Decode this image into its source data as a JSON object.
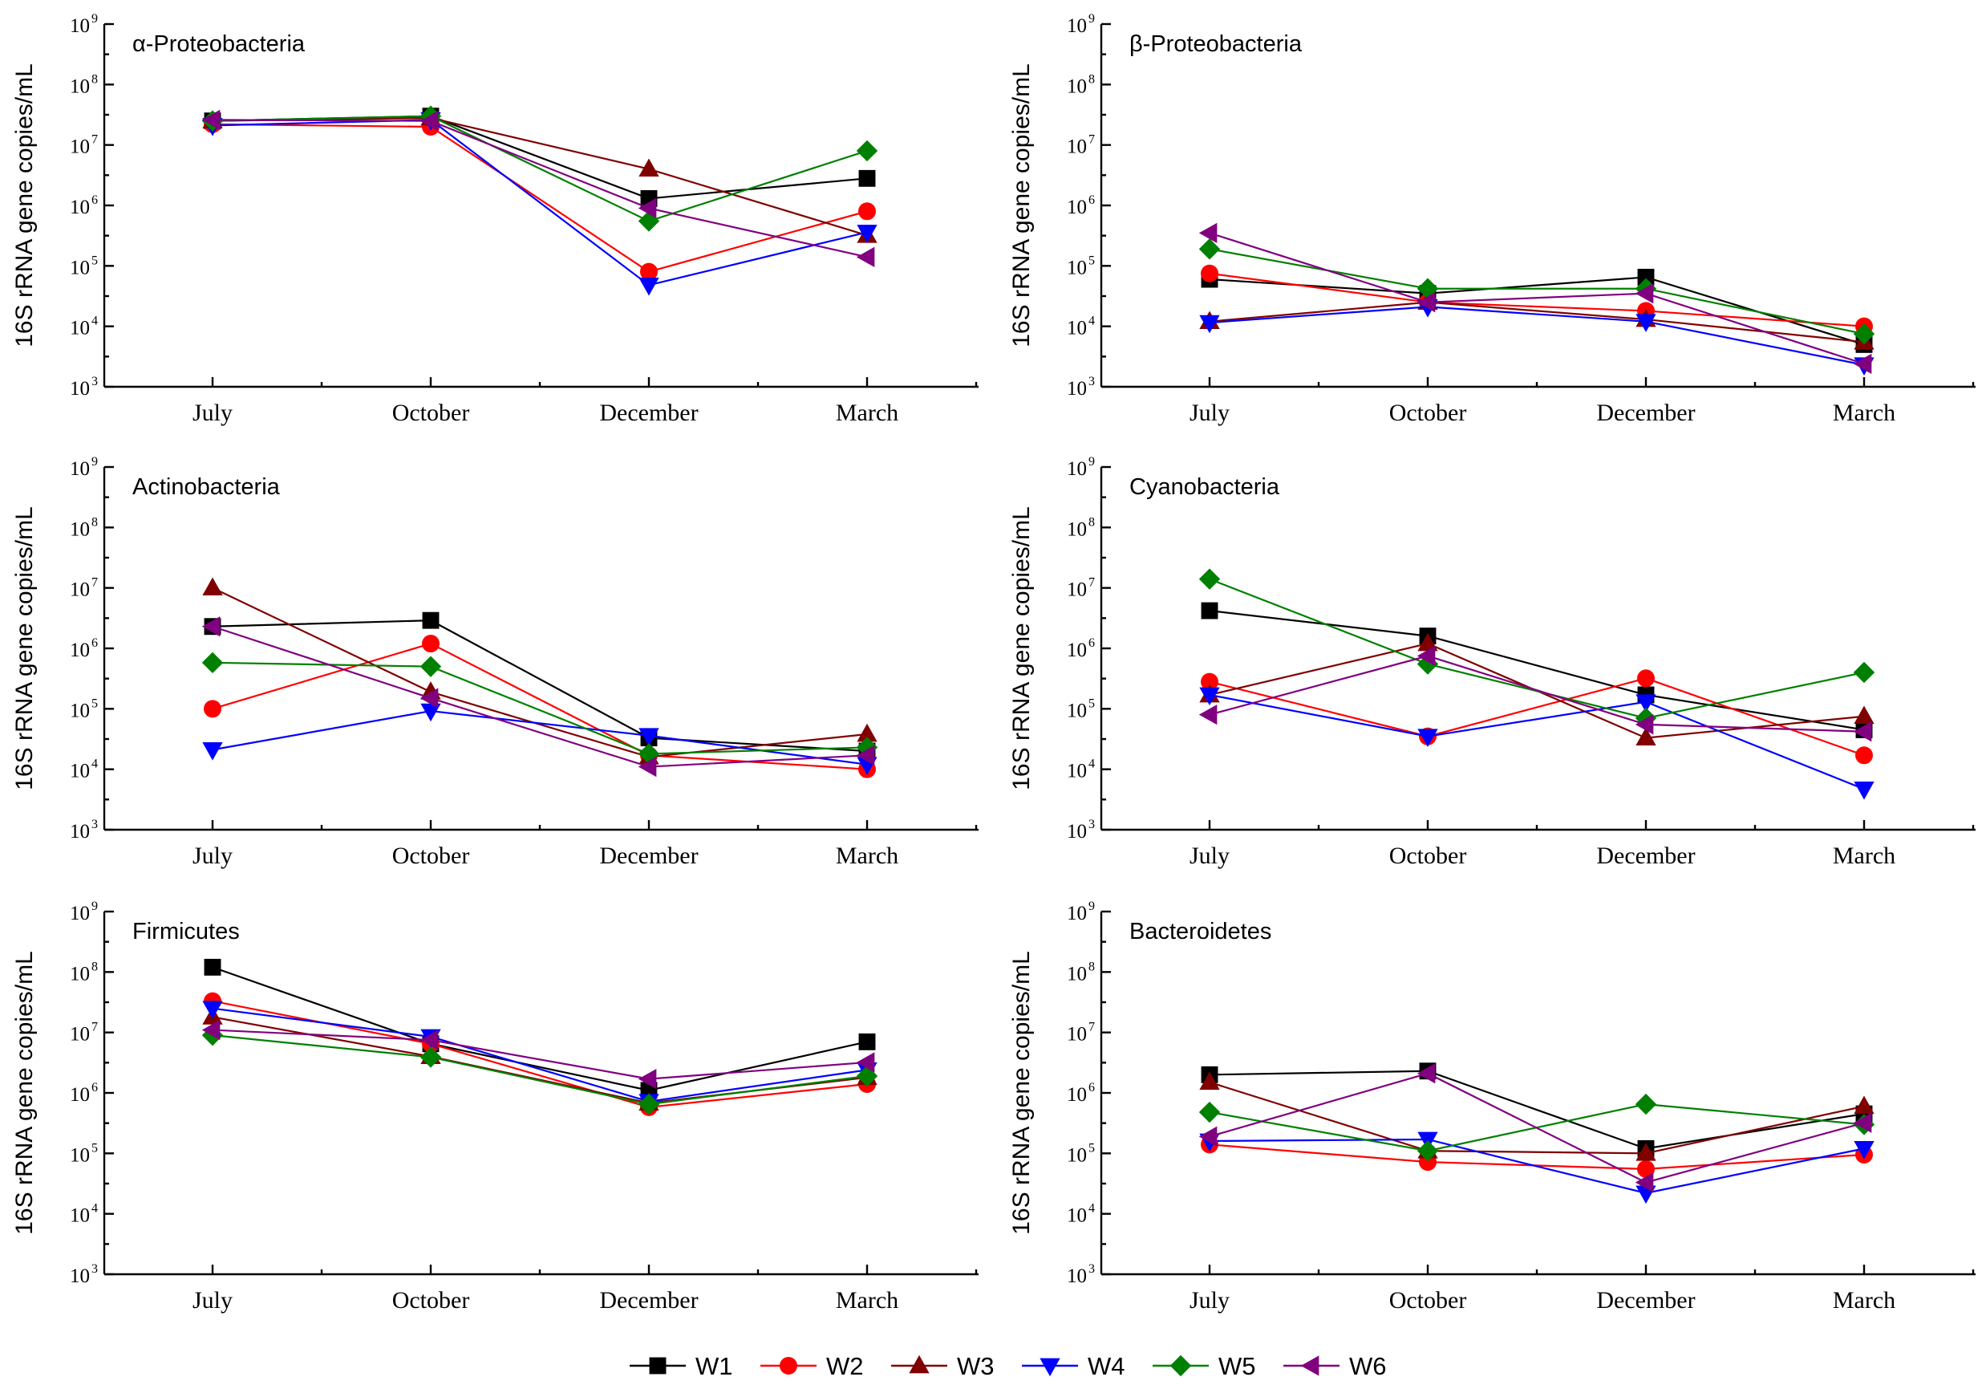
{
  "chart_data": {
    "type": "line",
    "layout": "3x2 grid of small multiples",
    "x_categories": [
      "July",
      "October",
      "December",
      "March"
    ],
    "y_label": "16S rRNA gene copies/mL",
    "y_scale": "log10",
    "ylim": [
      1000,
      1000000000
    ],
    "y_tick_base": "10",
    "y_tick_exponents": [
      "3",
      "4",
      "5",
      "6",
      "7",
      "8",
      "9"
    ],
    "legend": {
      "position": "bottom-center",
      "entries": [
        {
          "name": "W1",
          "color": "#000000",
          "marker": "square"
        },
        {
          "name": "W2",
          "color": "#ff0000",
          "marker": "circle"
        },
        {
          "name": "W3",
          "color": "#800000",
          "marker": "triangle-up"
        },
        {
          "name": "W4",
          "color": "#0000ff",
          "marker": "triangle-down"
        },
        {
          "name": "W5",
          "color": "#008000",
          "marker": "diamond"
        },
        {
          "name": "W6",
          "color": "#800080",
          "marker": "triangle-left"
        }
      ]
    },
    "panels": [
      {
        "title": "α-Proteobacteria",
        "series": [
          {
            "name": "W1",
            "values": [
              25000000,
              30000000,
              1300000,
              2800000
            ]
          },
          {
            "name": "W2",
            "values": [
              22000000,
              20000000,
              80000,
              800000
            ]
          },
          {
            "name": "W3",
            "values": [
              25000000,
              28000000,
              4000000,
              320000
            ]
          },
          {
            "name": "W4",
            "values": [
              21000000,
              26000000,
              48000,
              360000
            ]
          },
          {
            "name": "W5",
            "values": [
              25000000,
              30000000,
              550000,
              8000000
            ]
          },
          {
            "name": "W6",
            "values": [
              26000000,
              25000000,
              900000,
              140000
            ]
          }
        ]
      },
      {
        "title": "β-Proteobacteria",
        "series": [
          {
            "name": "W1",
            "values": [
              60000,
              35000,
              65000,
              5000
            ]
          },
          {
            "name": "W2",
            "values": [
              75000,
              25000,
              18000,
              10000
            ]
          },
          {
            "name": "W3",
            "values": [
              12000,
              25000,
              13000,
              5500
            ]
          },
          {
            "name": "W4",
            "values": [
              11500,
              21000,
              12000,
              2300
            ]
          },
          {
            "name": "W5",
            "values": [
              190000,
              42000,
              42000,
              7500
            ]
          },
          {
            "name": "W6",
            "values": [
              350000,
              25000,
              35000,
              2400
            ]
          }
        ]
      },
      {
        "title": "Actinobacteria",
        "series": [
          {
            "name": "W1",
            "values": [
              2300000,
              2900000,
              33000,
              20000
            ]
          },
          {
            "name": "W2",
            "values": [
              100000,
              1200000,
              17000,
              10000
            ]
          },
          {
            "name": "W3",
            "values": [
              10000000,
              190000,
              16000,
              38000
            ]
          },
          {
            "name": "W4",
            "values": [
              21000,
              92000,
              36000,
              12000
            ]
          },
          {
            "name": "W5",
            "values": [
              580000,
              500000,
              18000,
              23000
            ]
          },
          {
            "name": "W6",
            "values": [
              2300000,
              150000,
              11000,
              17000
            ]
          }
        ]
      },
      {
        "title": "Cyanobacteria",
        "series": [
          {
            "name": "W1",
            "values": [
              4200000,
              1600000,
              170000,
              45000
            ]
          },
          {
            "name": "W2",
            "values": [
              280000,
              35000,
              320000,
              17000
            ]
          },
          {
            "name": "W3",
            "values": [
              170000,
              1200000,
              33000,
              75000
            ]
          },
          {
            "name": "W4",
            "values": [
              170000,
              35000,
              130000,
              4700
            ]
          },
          {
            "name": "W5",
            "values": [
              14000000,
              550000,
              70000,
              400000
            ]
          },
          {
            "name": "W6",
            "values": [
              80000,
              750000,
              55000,
              42000
            ]
          }
        ]
      },
      {
        "title": "Firmicutes",
        "series": [
          {
            "name": "W1",
            "values": [
              120000000,
              6500000,
              1100000,
              7000000
            ]
          },
          {
            "name": "W2",
            "values": [
              33000000,
              6500000,
              580000,
              1400000
            ]
          },
          {
            "name": "W3",
            "values": [
              18000000,
              4000000,
              680000,
              1800000
            ]
          },
          {
            "name": "W4",
            "values": [
              25000000,
              8500000,
              720000,
              2400000
            ]
          },
          {
            "name": "W5",
            "values": [
              9000000,
              3900000,
              650000,
              1900000
            ]
          },
          {
            "name": "W6",
            "values": [
              11000000,
              7500000,
              1700000,
              3200000
            ]
          }
        ]
      },
      {
        "title": "Bacteroidetes",
        "series": [
          {
            "name": "W1",
            "values": [
              2000000,
              2300000,
              120000,
              450000
            ]
          },
          {
            "name": "W2",
            "values": [
              140000,
              72000,
              55000,
              95000
            ]
          },
          {
            "name": "W3",
            "values": [
              1500000,
              110000,
              100000,
              600000
            ]
          },
          {
            "name": "W4",
            "values": [
              160000,
              170000,
              22000,
              120000
            ]
          },
          {
            "name": "W5",
            "values": [
              480000,
              110000,
              650000,
              300000
            ]
          },
          {
            "name": "W6",
            "values": [
              190000,
              2100000,
              33000,
              320000
            ]
          }
        ]
      }
    ]
  }
}
